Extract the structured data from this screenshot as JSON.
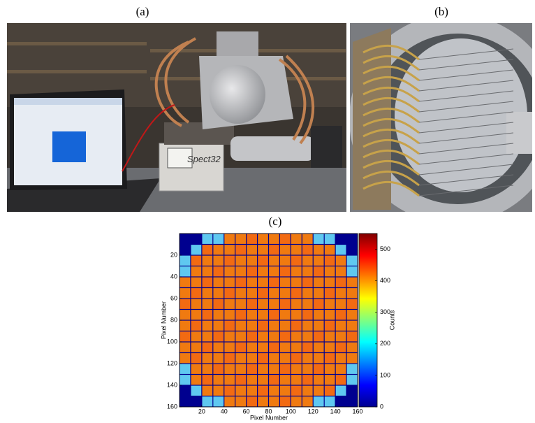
{
  "panel_labels": [
    "(a)",
    "(b)",
    "(c)"
  ],
  "photo_a": {
    "device_label": "Spect32"
  },
  "chart_data": {
    "type": "heatmap",
    "xlabel": "Pixel Number",
    "ylabel": "Pixel Number",
    "colorbar_label": "Counts",
    "xlim": [
      0,
      160
    ],
    "ylim": [
      0,
      160
    ],
    "y_inverted": true,
    "xticks": [
      20,
      40,
      60,
      80,
      100,
      120,
      140,
      160
    ],
    "yticks": [
      20,
      40,
      60,
      80,
      100,
      120,
      140,
      160
    ],
    "clim": [
      0,
      550
    ],
    "cticks": [
      0,
      100,
      200,
      300,
      400,
      500
    ],
    "colormap": "jet"
  }
}
